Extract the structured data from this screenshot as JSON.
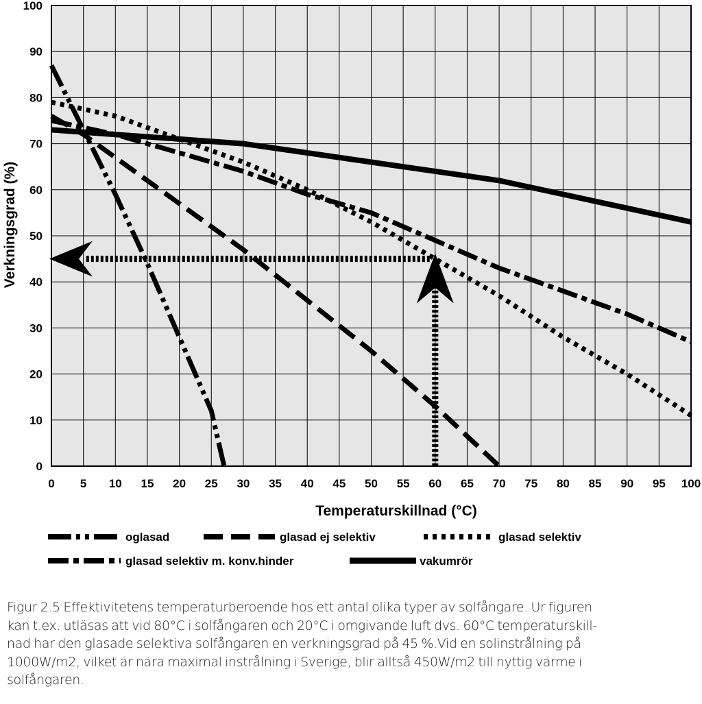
{
  "chart_data": {
    "type": "line",
    "xlabel": "Temperaturskillnad (°C)",
    "ylabel": "Verkningsgrad (%)",
    "xlim": [
      0,
      100
    ],
    "ylim": [
      0,
      100
    ],
    "x_ticks": [
      0,
      5,
      10,
      15,
      20,
      25,
      30,
      35,
      40,
      45,
      50,
      55,
      60,
      65,
      70,
      75,
      80,
      85,
      90,
      95,
      100
    ],
    "y_ticks": [
      0,
      10,
      20,
      30,
      40,
      50,
      60,
      70,
      80,
      90,
      100
    ],
    "x_tick_labels": [
      "0",
      "5",
      "10",
      "15",
      "20",
      "25",
      "30",
      "35",
      "40",
      "45",
      "50",
      "55",
      "60",
      "65",
      "70",
      "75",
      "80",
      "85",
      "90",
      "95",
      "100"
    ],
    "y_tick_labels": [
      "0",
      "10",
      "20",
      "30",
      "40",
      "50",
      "60",
      "70",
      "80",
      "90",
      "100"
    ],
    "grid": true,
    "series": [
      {
        "name": "oglasad",
        "style": "dash-dot-dot",
        "x": [
          0,
          5,
          10,
          15,
          20,
          25,
          27
        ],
        "y": [
          87,
          73,
          59,
          44,
          28,
          12,
          0
        ]
      },
      {
        "name": "glasad ej selektiv",
        "style": "dash",
        "x": [
          0,
          5,
          10,
          20,
          30,
          40,
          50,
          60,
          70
        ],
        "y": [
          76,
          72,
          67,
          57,
          47,
          36,
          25,
          13,
          0
        ]
      },
      {
        "name": "glasad selektiv",
        "style": "dot",
        "x": [
          0,
          10,
          20,
          30,
          40,
          50,
          60,
          70,
          80,
          90,
          100
        ],
        "y": [
          79,
          76,
          71,
          66,
          60,
          53,
          45,
          37,
          28,
          20,
          11
        ]
      },
      {
        "name": "glasad selektiv m. konv.hinder",
        "style": "dash-dot",
        "x": [
          0,
          10,
          20,
          30,
          40,
          50,
          60,
          70,
          80,
          90,
          100
        ],
        "y": [
          75,
          72,
          68,
          64,
          59,
          55,
          49,
          43,
          38,
          33,
          27
        ]
      },
      {
        "name": "vakumrör",
        "style": "solid",
        "x": [
          0,
          10,
          20,
          30,
          40,
          50,
          60,
          70,
          80,
          90,
          100
        ],
        "y": [
          73,
          72,
          71,
          70,
          68,
          66,
          64,
          62,
          59,
          56,
          53
        ]
      }
    ],
    "annotations": [
      {
        "type": "arrow",
        "from": [
          60,
          0
        ],
        "to": [
          60,
          45
        ]
      },
      {
        "type": "arrow",
        "from": [
          60,
          45
        ],
        "to": [
          0,
          45
        ]
      }
    ],
    "legend": {
      "placement": "bottom"
    }
  },
  "caption": [
    "Figur 2.5 Effektivitetens temperaturberoende hos ett antal olika typer av solfångare. Ur figuren",
    "kan t.ex. utläsas att vid 80°C i solfångaren och 20°C i omgivande luft dvs. 60°C temperaturskill-",
    "nad har den glasade selektiva solfångaren en verkningsgrad på 45 %.Vid en solinstrålning på",
    "1000W/m2, vilket är nära maximal instrålning i Sverige, blir alltså 450W/m2 till nyttig värme i",
    "solfångaren."
  ]
}
